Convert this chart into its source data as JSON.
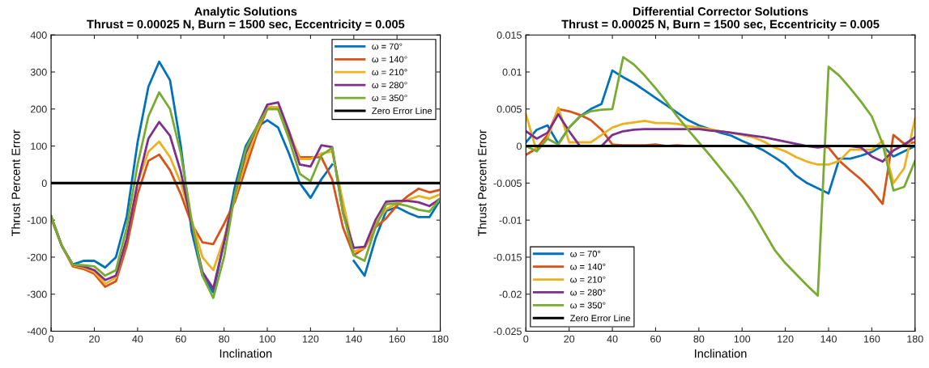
{
  "chart_data": [
    {
      "type": "line",
      "title": "Analytic Solutions",
      "subtitle": "Thrust = 0.00025 N, Burn = 1500 sec, Eccentricity = 0.005",
      "xlabel": "Inclination",
      "ylabel": "Thrust Percent Error",
      "x": [
        0,
        5,
        10,
        15,
        20,
        25,
        30,
        35,
        40,
        45,
        50,
        55,
        60,
        65,
        70,
        75,
        80,
        85,
        90,
        95,
        100,
        105,
        110,
        115,
        120,
        125,
        130,
        135,
        140,
        145,
        150,
        155,
        160,
        165,
        170,
        175,
        180
      ],
      "xlim": [
        0,
        180
      ],
      "xticks": [
        0,
        20,
        40,
        60,
        80,
        100,
        120,
        140,
        160,
        180
      ],
      "ylim": [
        -400,
        400
      ],
      "yticks": [
        -400,
        -300,
        -200,
        -100,
        0,
        100,
        200,
        300,
        400
      ],
      "grid": false,
      "legend": "top right",
      "marker": "none",
      "line_style": "solid",
      "series": [
        {
          "name": "ω = 70°",
          "color": "#0072bd",
          "values": [
            -90,
            -170,
            -220,
            -210,
            -210,
            -228,
            -200,
            -90,
            110,
            260,
            328,
            278,
            100,
            -130,
            -250,
            -295,
            -160,
            -10,
            100,
            150,
            170,
            150,
            80,
            0,
            -40,
            10,
            50,
            null,
            -210,
            -250,
            -150,
            -75,
            -65,
            -80,
            -92,
            -92,
            -45
          ]
        },
        {
          "name": "ω = 140°",
          "color": "#d95319",
          "values": [
            -95,
            -170,
            -225,
            -232,
            -245,
            -280,
            -265,
            -170,
            -30,
            60,
            77,
            35,
            -30,
            -110,
            -160,
            -165,
            -110,
            -50,
            40,
            130,
            200,
            200,
            130,
            70,
            70,
            70,
            10,
            -120,
            -195,
            -175,
            -120,
            -95,
            -60,
            -35,
            -15,
            -25,
            -18
          ]
        },
        {
          "name": "ω = 210°",
          "color": "#edb120",
          "values": [
            -90,
            -170,
            -222,
            -228,
            -240,
            -272,
            -255,
            -150,
            0,
            85,
            112,
            70,
            0,
            -100,
            -200,
            -235,
            -150,
            -40,
            60,
            140,
            205,
            205,
            140,
            65,
            65,
            80,
            85,
            -50,
            -185,
            -175,
            -110,
            -70,
            -55,
            -45,
            -35,
            -42,
            -30
          ]
        },
        {
          "name": "ω = 280°",
          "color": "#7e2f8e",
          "values": [
            -90,
            -170,
            -220,
            -225,
            -235,
            -262,
            -250,
            -150,
            0,
            120,
            165,
            128,
            30,
            -110,
            -240,
            -285,
            -160,
            -30,
            80,
            150,
            212,
            218,
            140,
            50,
            45,
            102,
            97,
            -80,
            -175,
            -172,
            -100,
            -50,
            -48,
            -48,
            -52,
            -62,
            -42
          ]
        },
        {
          "name": "ω = 350°",
          "color": "#77ac30",
          "values": [
            -90,
            -170,
            -220,
            -222,
            -225,
            -250,
            -235,
            -120,
            50,
            180,
            245,
            200,
            80,
            -100,
            -250,
            -310,
            -200,
            -30,
            90,
            150,
            200,
            200,
            120,
            25,
            5,
            75,
            95,
            -80,
            -195,
            -210,
            -120,
            -57,
            -55,
            -62,
            -72,
            -77,
            -42
          ]
        }
      ],
      "ref_lines": [
        {
          "axis": "y",
          "value": 0,
          "label": "Zero Error Line",
          "color": "#000000",
          "line_style": "solid"
        }
      ]
    },
    {
      "type": "line",
      "title": "Differential Corrector Solutions",
      "subtitle": "Thrust = 0.00025 N, Burn = 1500 sec, Eccentricity = 0.005",
      "xlabel": "Inclination",
      "ylabel": "Thrust Percent Error",
      "x": [
        0,
        5,
        10,
        15,
        20,
        25,
        30,
        35,
        40,
        45,
        50,
        55,
        60,
        65,
        70,
        75,
        80,
        85,
        90,
        95,
        100,
        105,
        110,
        115,
        120,
        125,
        130,
        135,
        140,
        145,
        150,
        155,
        160,
        165,
        170,
        175,
        180
      ],
      "xlim": [
        0,
        180
      ],
      "xticks": [
        0,
        20,
        40,
        60,
        80,
        100,
        120,
        140,
        160,
        180
      ],
      "ylim": [
        -0.025,
        0.015
      ],
      "yticks": [
        -0.025,
        -0.02,
        -0.015,
        -0.01,
        -0.005,
        0,
        0.005,
        0.01,
        0.015
      ],
      "grid": false,
      "legend": "bottom left",
      "marker": "none",
      "line_style": "solid",
      "series": [
        {
          "name": "ω = 70°",
          "color": "#0072bd",
          "values": [
            0.0005,
            0.0022,
            0.0028,
            0.0003,
            0.0025,
            0.004,
            0.005,
            0.0057,
            0.0102,
            0.0093,
            0.0085,
            0.0075,
            0.0065,
            0.0055,
            0.0045,
            0.0035,
            0.0028,
            0.0023,
            0.0018,
            0.0014,
            0.0007,
            0.0001,
            -0.0006,
            -0.0015,
            -0.0025,
            -0.004,
            -0.005,
            -0.0057,
            -0.0064,
            -0.0017,
            -0.0017,
            -0.0013,
            -0.0008,
            0.0,
            -0.0014,
            -0.0007,
            0.0
          ]
        },
        {
          "name": "ω = 140°",
          "color": "#d95319",
          "values": [
            -0.0012,
            -0.0003,
            0.0015,
            0.005,
            0.0047,
            0.0042,
            0.0035,
            0.0022,
            0.0002,
            0.0001,
            0.0001,
            0.0001,
            0.0002,
            0.0,
            0.0001,
            0.0,
            0.0,
            0.0,
            0.0,
            0.0,
            0.0,
            0.0,
            0.0,
            0.0,
            0.0,
            0.0,
            0.0,
            0.0,
            -0.0002,
            -0.002,
            -0.0033,
            -0.0045,
            -0.006,
            -0.0078,
            0.0015,
            0.0003,
            0.0005
          ]
        },
        {
          "name": "ω = 210°",
          "color": "#edb120",
          "values": [
            0.0043,
            -0.0007,
            0.001,
            0.0052,
            0.0005,
            0.0005,
            0.0005,
            0.0015,
            0.0025,
            0.003,
            0.0032,
            0.0034,
            0.0031,
            0.0031,
            0.003,
            0.0027,
            0.0025,
            0.0023,
            0.002,
            0.0018,
            0.0015,
            0.0012,
            0.0006,
            -0.0002,
            -0.0007,
            -0.0015,
            -0.0021,
            -0.0025,
            -0.0025,
            -0.002,
            -0.0005,
            -0.0005,
            -0.0005,
            0.0007,
            -0.005,
            -0.003,
            0.0037
          ]
        },
        {
          "name": "ω = 280°",
          "color": "#7e2f8e",
          "values": [
            0.002,
            0.001,
            0.0018,
            0.0043,
            0.002,
            0.0,
            0.0,
            0.0,
            0.0015,
            0.002,
            0.0022,
            0.0023,
            0.0023,
            0.0023,
            0.0023,
            0.0023,
            0.0023,
            0.0021,
            0.002,
            0.0018,
            0.0016,
            0.0014,
            0.0012,
            0.0009,
            0.0006,
            0.0003,
            0.0,
            -0.0002,
            0.0,
            0.0,
            0.0,
            -0.0002,
            -0.0014,
            -0.0021,
            -0.0006,
            0.0002,
            0.0012
          ]
        },
        {
          "name": "ω = 350°",
          "color": "#77ac30",
          "values": [
            0.0,
            -0.0007,
            0.001,
            0.0002,
            0.0025,
            0.004,
            0.0047,
            0.0049,
            0.005,
            0.012,
            0.011,
            0.0095,
            0.0078,
            0.006,
            0.004,
            0.0022,
            0.0005,
            -0.0012,
            -0.003,
            -0.0048,
            -0.0068,
            -0.009,
            -0.0115,
            -0.014,
            -0.0158,
            -0.0173,
            -0.0188,
            -0.0202,
            0.0107,
            0.0095,
            0.0078,
            0.006,
            0.004,
            0.0003,
            -0.006,
            -0.0055,
            -0.002
          ]
        }
      ],
      "ref_lines": [
        {
          "axis": "y",
          "value": 0,
          "label": "Zero Error Line",
          "color": "#000000",
          "line_style": "solid"
        }
      ]
    }
  ]
}
